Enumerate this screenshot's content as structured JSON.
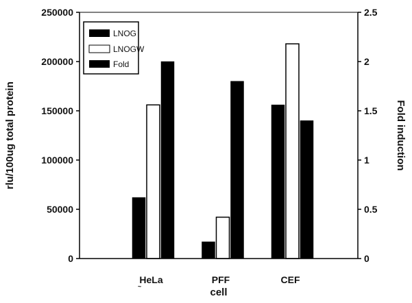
{
  "chart_data": {
    "type": "bar",
    "categories": [
      "HeLa",
      "PFF",
      "CEF"
    ],
    "series": [
      {
        "name": "LNOG",
        "axis": "left",
        "color": "#000000",
        "fill": "solid",
        "values": [
          62000,
          17000,
          156000
        ]
      },
      {
        "name": "LNOGW",
        "axis": "left",
        "color": "#ffffff",
        "fill": "outline",
        "values": [
          156000,
          42000,
          218000
        ]
      },
      {
        "name": "Fold",
        "axis": "right",
        "color": "#000000",
        "fill": "solid",
        "values": [
          2.0,
          1.8,
          1.4
        ]
      }
    ],
    "xlabel": "cell",
    "ylabel": "rlu/100ug total protein",
    "y2label": "Fold induction",
    "ylim": [
      0,
      250000
    ],
    "y2lim": [
      0,
      2.5
    ],
    "yticks": [
      "0",
      "50000",
      "100000",
      "150000",
      "200000",
      "250000"
    ],
    "y2ticks": [
      "0",
      "0.5",
      "1",
      "1.5",
      "2",
      "2.5"
    ],
    "grid": false,
    "legend_position": "top-left",
    "stray_mark": "~"
  }
}
